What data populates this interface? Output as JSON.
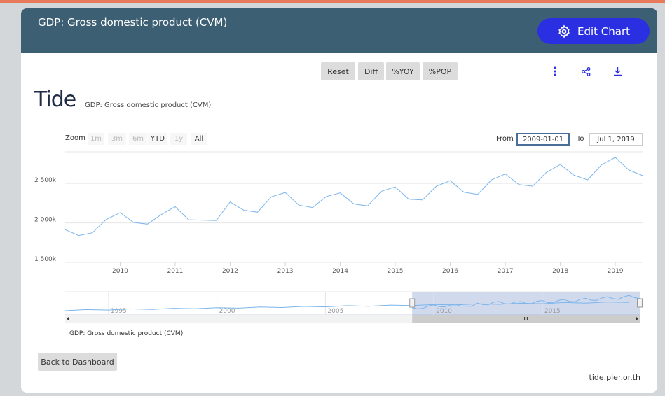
{
  "header": {
    "title": "GDP: Gross domestic product (CVM)",
    "edit_label": "Edit Chart"
  },
  "toolbar": {
    "buttons": [
      "Reset",
      "Diff",
      "%YOY",
      "%POP"
    ]
  },
  "logo": {
    "text": "Tide",
    "subtitle": "GDP: Gross domestic product (CVM)"
  },
  "range_selector": {
    "zoom_label": "Zoom",
    "buttons": [
      "1m",
      "3m",
      "6m",
      "YTD",
      "1y",
      "All"
    ],
    "from_label": "From",
    "from_value": "2009-01-01",
    "to_label": "To",
    "to_value": "Jul 1, 2019"
  },
  "chart_data": {
    "type": "line",
    "series": [
      {
        "name": "GDP: Gross domestic product (CVM)",
        "x": [
          "2009-01-01",
          "2009-04-01",
          "2009-07-01",
          "2009-10-01",
          "2010-01-01",
          "2010-04-01",
          "2010-07-01",
          "2010-10-01",
          "2011-01-01",
          "2011-04-01",
          "2011-07-01",
          "2011-10-01",
          "2012-01-01",
          "2012-04-01",
          "2012-07-01",
          "2012-10-01",
          "2013-01-01",
          "2013-04-01",
          "2013-07-01",
          "2013-10-01",
          "2014-01-01",
          "2014-04-01",
          "2014-07-01",
          "2014-10-01",
          "2015-01-01",
          "2015-04-01",
          "2015-07-01",
          "2015-10-01",
          "2016-01-01",
          "2016-04-01",
          "2016-07-01",
          "2016-10-01",
          "2017-01-01",
          "2017-04-01",
          "2017-07-01",
          "2017-10-01",
          "2018-01-01",
          "2018-04-01",
          "2018-07-01",
          "2018-10-01",
          "2019-01-01",
          "2019-04-01",
          "2019-07-01"
        ],
        "values": [
          1915,
          1840,
          1875,
          2045,
          2130,
          2005,
          1985,
          2105,
          2205,
          2040,
          2035,
          2030,
          2265,
          2160,
          2135,
          2330,
          2385,
          2225,
          2195,
          2335,
          2380,
          2240,
          2215,
          2400,
          2455,
          2300,
          2290,
          2465,
          2535,
          2390,
          2360,
          2545,
          2620,
          2485,
          2465,
          2640,
          2740,
          2605,
          2545,
          2735,
          2830,
          2670,
          2600
        ]
      }
    ],
    "ylim": [
      1500,
      2900
    ],
    "yticks": [
      1500,
      2000,
      2500
    ],
    "ytick_labels": [
      "1 500k",
      "2 000k",
      "2 500k"
    ],
    "xtick_labels": [
      "2010",
      "2011",
      "2012",
      "2013",
      "2014",
      "2015",
      "2016",
      "2017",
      "2018",
      "2019"
    ],
    "navigator_labels": [
      "1995",
      "2000",
      "2005",
      "2010",
      "2015"
    ],
    "navigator_range": [
      "1993-01-01",
      "2019-07-01"
    ],
    "grid": true,
    "legend": "bottom-left"
  },
  "footer": {
    "back_label": "Back to Dashboard",
    "site": "tide.pier.or.th"
  },
  "colors": {
    "header": "#3d5f73",
    "accent": "#2b2fe2",
    "series": "#7cb5ec",
    "icon": "#2b2fe2"
  }
}
